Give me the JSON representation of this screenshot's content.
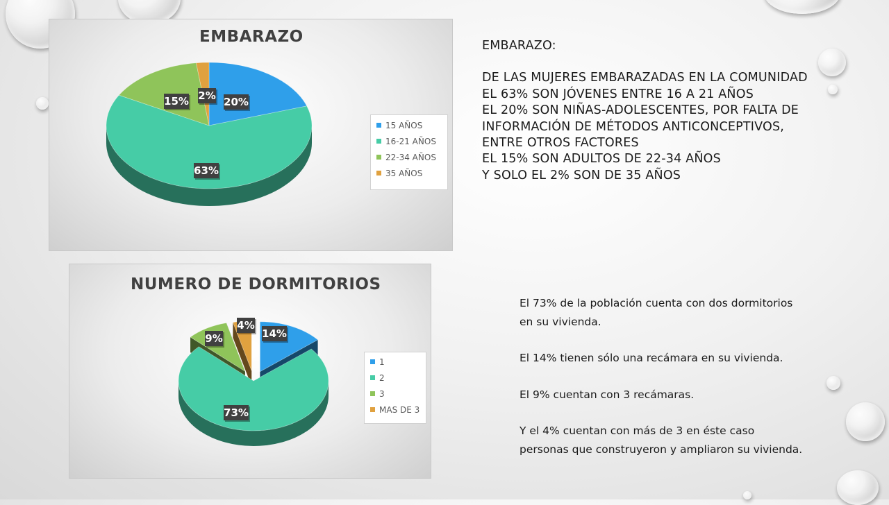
{
  "slide": {
    "pregnancy_text": [
      "EMBARAZO:",
      "",
      "DE LAS MUJERES EMBARAZADAS EN LA COMUNIDAD",
      "EL 63% SON JÓVENES ENTRE 16 A 21 AÑOS",
      "EL 20% SON NIÑAS-ADOLESCENTES, POR FALTA DE",
      "INFORMACIÓN DE MÉTODOS ANTICONCEPTIVOS,",
      "ENTRE OTROS FACTORES",
      "EL 15% SON ADULTOS DE 22-34 AÑOS",
      "Y SOLO EL 2% SON DE 35 AÑOS"
    ],
    "bedrooms_text": [
      "El 73% de la población cuenta con dos dormitorios",
      "en su vivienda.",
      "",
      "El 14% tienen sólo una recámara en su vivienda.",
      "",
      "El 9% cuentan con 3 recámaras.",
      "",
      "Y el 4% cuentan con más de 3 en éste caso",
      "personas que construyeron y ampliaron su vivienda."
    ]
  },
  "chart_data": [
    {
      "type": "pie",
      "title": "EMBARAZO",
      "categories": [
        "15 AÑOS",
        "16-21 AÑOS",
        "22-34 AÑOS",
        "35 AÑOS"
      ],
      "values": [
        20,
        63,
        15,
        2
      ],
      "data_labels": [
        "20%",
        "63%",
        "15%",
        "2%"
      ],
      "colors": [
        "#2f9fea",
        "#46cca6",
        "#8fc45a",
        "#e0a13f"
      ],
      "legend_placement": "right",
      "style": "3d"
    },
    {
      "type": "pie",
      "title": "NUMERO DE DORMITORIOS",
      "categories": [
        "1",
        "2",
        "3",
        "MAS DE 3"
      ],
      "values": [
        14,
        73,
        9,
        4
      ],
      "data_labels": [
        "14%",
        "73%",
        "9%",
        "4%"
      ],
      "colors": [
        "#2f9fea",
        "#46cca6",
        "#8fc45a",
        "#e0a13f"
      ],
      "legend_placement": "right",
      "style": "3d-exploded"
    }
  ]
}
